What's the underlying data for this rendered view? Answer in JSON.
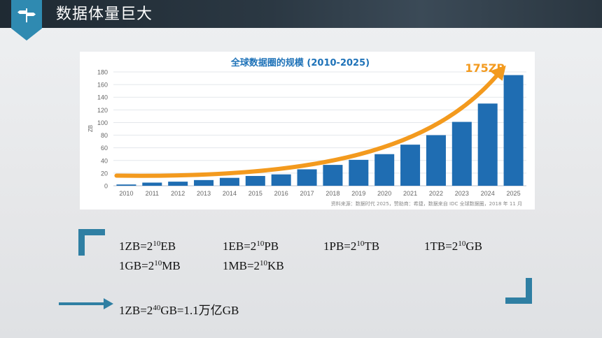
{
  "page": {
    "title": "数据体量巨大",
    "accent_color": "#2f8ab1",
    "topbar_icon": "signpost-icon"
  },
  "chart_data": {
    "type": "bar",
    "title": "全球数据圈的规模 (2010-2025)",
    "ylabel": "ZB",
    "xlabel": "",
    "ylim": [
      0,
      180
    ],
    "yticks": [
      0,
      20,
      40,
      60,
      80,
      100,
      120,
      140,
      160,
      180
    ],
    "categories": [
      "2010",
      "2011",
      "2012",
      "2013",
      "2014",
      "2015",
      "2016",
      "2017",
      "2018",
      "2019",
      "2020",
      "2021",
      "2022",
      "2023",
      "2024",
      "2025"
    ],
    "values": [
      2,
      5,
      6.5,
      9,
      12.5,
      15.5,
      18,
      26,
      33,
      41,
      50,
      65,
      80,
      101,
      130,
      175
    ],
    "bar_color": "#1f6db2",
    "trend_color": "#f39a1e",
    "annotation": "175ZB",
    "source": "资料来源：数据时代 2025，赞助商：希捷，数据来自 IDC 全球数据圈，2018 年 11 月",
    "grid": true
  },
  "formulas": {
    "row1": [
      {
        "base": "1ZB=2",
        "exp": "10",
        "unit": "EB"
      },
      {
        "base": "1EB=2",
        "exp": "10",
        "unit": "PB"
      },
      {
        "base": "1PB=2",
        "exp": "10",
        "unit": "TB"
      },
      {
        "base": "1TB=2",
        "exp": "10",
        "unit": "GB"
      }
    ],
    "row2": [
      {
        "base": "1GB=2",
        "exp": "10",
        "unit": "MB"
      },
      {
        "base": "1MB=2",
        "exp": "10",
        "unit": "KB"
      }
    ],
    "summary": {
      "base": "1ZB=2",
      "exp": "40",
      "unit": "GB=1.1万亿GB"
    }
  }
}
